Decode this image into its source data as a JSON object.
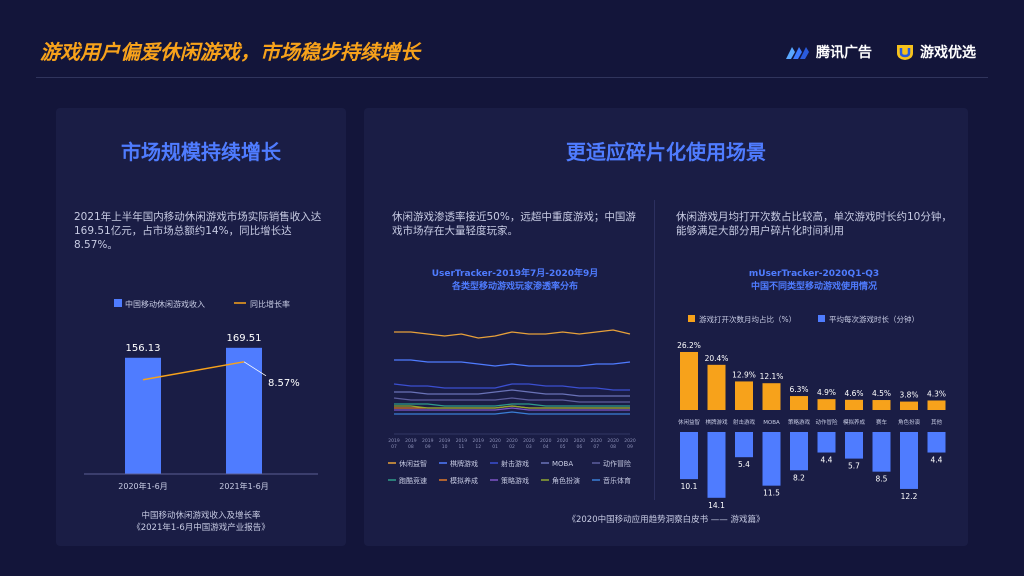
{
  "page_title": "游戏用户偏爱休闲游戏，市场稳步持续增长",
  "logos": {
    "tencent": "腾讯广告",
    "youxi": "游戏优选"
  },
  "colors": {
    "accent_orange": "#f7a21b",
    "accent_blue": "#4f7cff",
    "background": "#13153a"
  },
  "left_panel": {
    "title": "市场规模持续增长",
    "text": "2021年上半年国内移动休闲游戏市场实际销售收入达169.51亿元，占市场总额约14%，同比增长达8.57%。",
    "caption_line1": "中国移动休闲游戏收入及增长率",
    "caption_line2": "《2021年1-6月中国游戏产业报告》"
  },
  "right_panel": {
    "title": "更适应碎片化使用场景",
    "left_text": "休闲游戏渗透率接近50%，远超中重度游戏；中国游戏市场存在大量轻度玩家。",
    "right_text": "休闲游戏月均打开次数占比较高，单次游戏时长约10分钟，能够满足大部分用户碎片化时间利用",
    "line_chart_title1": "UserTracker-2019年7月-2020年9月",
    "line_chart_title2": "各类型移动游戏玩家渗透率分布",
    "bar_chart_title1": "mUserTracker-2020Q1-Q3",
    "bar_chart_title2": "中国不同类型移动游戏使用情况",
    "source": "《2020中国移动应用趋势洞察白皮书 —— 游戏篇》"
  },
  "chart_data": [
    {
      "type": "bar",
      "title": "中国移动休闲游戏收入及增长率",
      "categories": [
        "2020年1-6月",
        "2021年1-6月"
      ],
      "series": [
        {
          "name": "中国移动休闲游戏收入",
          "values": [
            156.13,
            169.51
          ],
          "color": "#4f7cff"
        },
        {
          "name": "同比增长率",
          "type": "line",
          "values": [
            null,
            8.57
          ],
          "color": "#f7a21b"
        }
      ],
      "value_labels": [
        "156.13",
        "169.51"
      ],
      "growth_label": "8.57%",
      "ylim": [
        0,
        180
      ]
    },
    {
      "type": "line",
      "title": "各类型移动游戏玩家渗透率分布",
      "x": [
        "2019-07",
        "2019-08",
        "2019-09",
        "2019-10",
        "2019-11",
        "2019-12",
        "2020-01",
        "2020-02",
        "2020-03",
        "2020-04",
        "2020-05",
        "2020-06",
        "2020-07",
        "2020-08",
        "2020-09"
      ],
      "x_tick_labels": [
        "2019\n07",
        "2019\n08",
        "2019\n09",
        "2019\n10",
        "2019\n11",
        "2019\n12",
        "2020\n01",
        "2020\n02",
        "2020\n03",
        "2020\n04",
        "2020\n05",
        "2020\n06",
        "2020\n07",
        "2020\n08",
        "2020\n09"
      ],
      "ylim": [
        0,
        60
      ],
      "series": [
        {
          "name": "休闲益智",
          "color": "#e8a13a",
          "values": [
            48,
            48,
            47,
            46,
            47,
            45,
            46,
            48,
            47,
            47,
            48,
            47,
            48,
            49,
            47
          ]
        },
        {
          "name": "棋牌游戏",
          "color": "#4f7cff",
          "values": [
            34,
            34,
            33,
            33,
            33,
            32,
            31,
            32,
            31,
            31,
            31,
            31,
            32,
            32,
            33
          ]
        },
        {
          "name": "射击游戏",
          "color": "#3b4fd1",
          "values": [
            22,
            21,
            21,
            20,
            20,
            20,
            20,
            22,
            22,
            21,
            21,
            20,
            20,
            19,
            19
          ]
        },
        {
          "name": "MOBA",
          "color": "#6a73b8",
          "values": [
            18,
            18,
            17,
            17,
            17,
            17,
            18,
            19,
            18,
            17,
            17,
            16,
            16,
            16,
            16
          ]
        },
        {
          "name": "动作冒险",
          "color": "#5d5f9e",
          "values": [
            15,
            14,
            14,
            14,
            14,
            14,
            14,
            15,
            14,
            14,
            14,
            13,
            13,
            13,
            13
          ]
        },
        {
          "name": "跑酷竞速",
          "color": "#2f9c8a",
          "values": [
            12,
            12,
            12,
            11,
            11,
            11,
            11,
            12,
            12,
            11,
            11,
            11,
            11,
            11,
            11
          ]
        },
        {
          "name": "模拟养成",
          "color": "#e07a2a",
          "values": [
            10,
            10,
            10,
            10,
            10,
            10,
            10,
            11,
            10,
            10,
            10,
            10,
            10,
            10,
            10
          ]
        },
        {
          "name": "策略游戏",
          "color": "#7d55c7",
          "values": [
            9,
            9,
            9,
            9,
            9,
            9,
            9,
            10,
            9,
            9,
            9,
            9,
            9,
            9,
            9
          ]
        },
        {
          "name": "角色扮演",
          "color": "#8fa832",
          "values": [
            11,
            11,
            10,
            10,
            10,
            10,
            10,
            11,
            10,
            10,
            10,
            10,
            10,
            10,
            10
          ]
        },
        {
          "name": "音乐体育",
          "color": "#3a7fd6",
          "values": [
            7,
            7,
            7,
            7,
            7,
            7,
            7,
            8,
            7,
            7,
            7,
            7,
            7,
            7,
            7
          ]
        }
      ]
    },
    {
      "type": "bar",
      "title": "中国不同类型移动游戏使用情况",
      "categories": [
        "休闲益智",
        "棋牌游戏",
        "射击游戏",
        "MOBA",
        "策略游戏",
        "动作冒险",
        "模拟养成",
        "赛车",
        "角色扮演",
        "其他"
      ],
      "series": [
        {
          "name": "游戏打开次数月均占比（%）",
          "color": "#f7a21b",
          "values": [
            26.2,
            20.4,
            12.9,
            12.1,
            6.3,
            4.9,
            4.6,
            4.5,
            3.8,
            4.3
          ],
          "labels": [
            "26.2%",
            "20.4%",
            "12.9%",
            "12.1%",
            "6.3%",
            "4.9%",
            "4.6%",
            "4.5%",
            "3.8%",
            "4.3%"
          ]
        },
        {
          "name": "平均每次游戏时长（分钟）",
          "color": "#4f7cff",
          "values": [
            10.1,
            14.1,
            5.4,
            11.5,
            8.2,
            4.4,
            5.7,
            8.5,
            12.2,
            4.4
          ],
          "labels": [
            "10.1",
            "14.1",
            "5.4",
            "11.5",
            "8.2",
            "4.4",
            "5.7",
            "8.5",
            "12.2",
            "4.4"
          ]
        }
      ]
    }
  ]
}
